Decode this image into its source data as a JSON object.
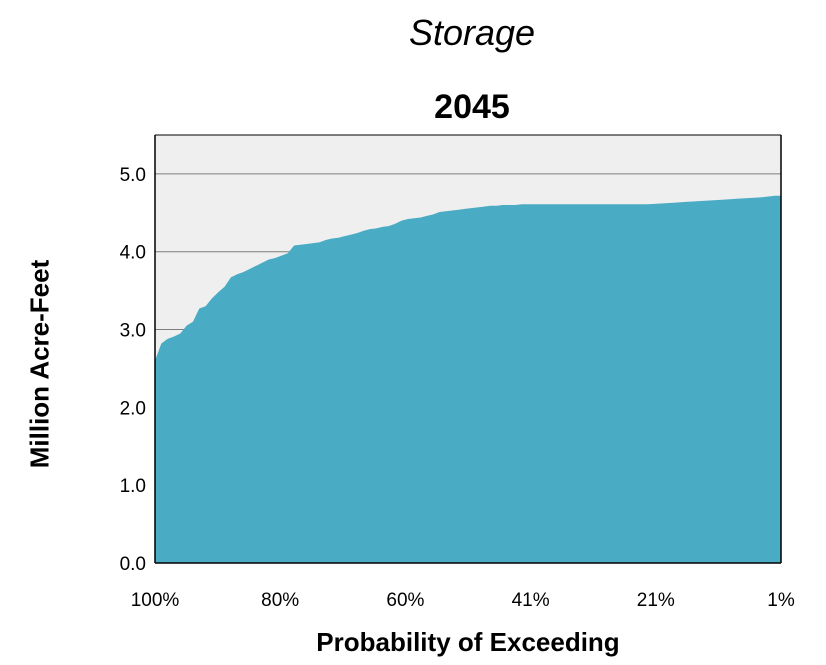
{
  "chart_data": {
    "type": "area",
    "subtitle": "Storage",
    "title": "2045",
    "xlabel": "Probability of Exceeding",
    "ylabel": "Million Acre-Feet",
    "x_tick_labels": [
      "100%",
      "80%",
      "60%",
      "41%",
      "21%",
      "1%"
    ],
    "y_tick_labels": [
      "0.0",
      "1.0",
      "2.0",
      "3.0",
      "4.0",
      "5.0"
    ],
    "ylim": [
      0,
      5.5
    ],
    "grid": "horizontal",
    "plot_background": "#efefef",
    "fill_color": "#4aabc4",
    "series": [
      {
        "x": [
          100,
          99,
          98,
          97,
          96,
          95,
          94,
          93,
          92,
          91,
          90,
          89,
          88,
          87,
          86,
          85,
          84,
          83,
          82,
          81,
          80,
          79,
          78,
          77,
          76,
          75,
          74,
          73,
          72,
          71,
          70,
          69,
          68,
          67,
          66,
          65,
          64,
          63,
          62,
          61,
          60,
          59,
          58,
          57,
          56,
          55,
          54,
          53,
          52,
          51,
          50,
          49,
          48,
          47,
          46,
          45,
          44,
          43,
          42,
          41,
          40,
          38,
          36,
          34,
          32,
          30,
          28,
          26,
          24,
          22,
          20,
          18,
          16,
          14,
          12,
          10,
          8,
          6,
          4,
          2,
          1
        ],
        "values": [
          2.6,
          2.82,
          2.88,
          2.91,
          2.95,
          3.05,
          3.1,
          3.27,
          3.3,
          3.4,
          3.48,
          3.55,
          3.67,
          3.71,
          3.74,
          3.78,
          3.82,
          3.86,
          3.9,
          3.92,
          3.95,
          3.98,
          4.08,
          4.09,
          4.1,
          4.11,
          4.12,
          4.15,
          4.17,
          4.18,
          4.2,
          4.22,
          4.24,
          4.27,
          4.29,
          4.3,
          4.32,
          4.33,
          4.36,
          4.4,
          4.42,
          4.43,
          4.44,
          4.46,
          4.48,
          4.51,
          4.52,
          4.53,
          4.54,
          4.55,
          4.56,
          4.57,
          4.58,
          4.59,
          4.59,
          4.6,
          4.6,
          4.6,
          4.61,
          4.61,
          4.61,
          4.61,
          4.61,
          4.61,
          4.61,
          4.61,
          4.61,
          4.61,
          4.61,
          4.61,
          4.62,
          4.63,
          4.64,
          4.65,
          4.66,
          4.67,
          4.68,
          4.69,
          4.7,
          4.72,
          4.72
        ]
      }
    ]
  }
}
